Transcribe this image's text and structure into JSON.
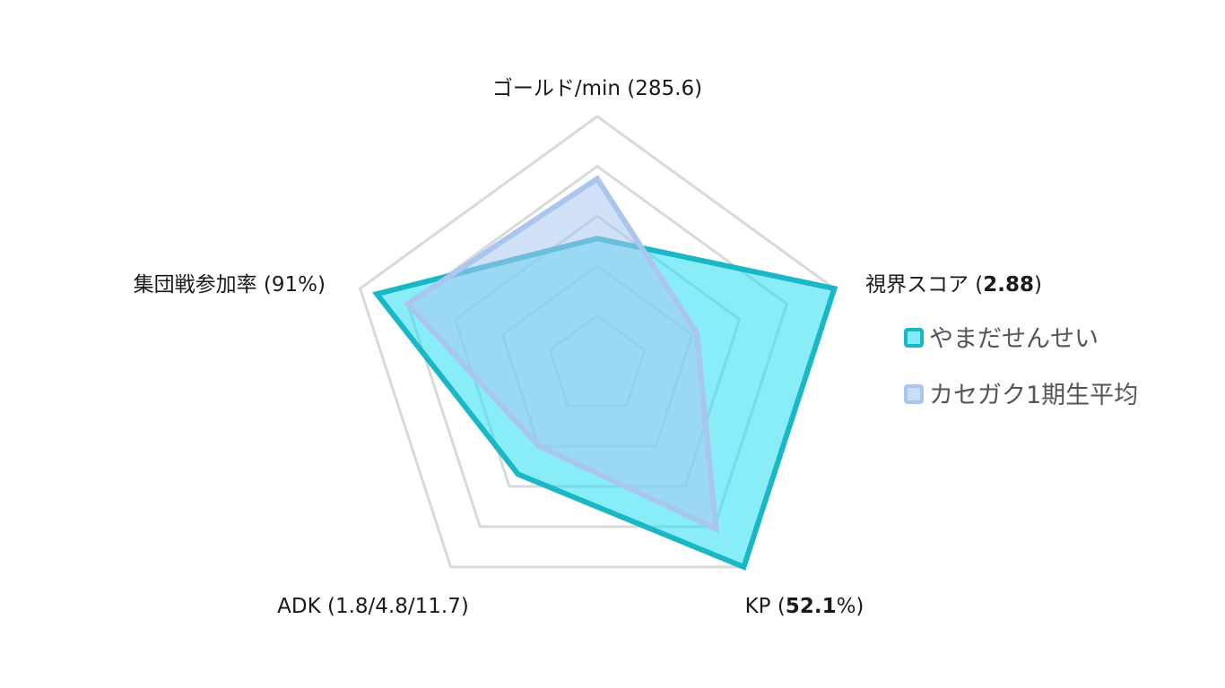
{
  "chart_data": {
    "type": "radar",
    "max": 1.0,
    "rings": 5,
    "axes": [
      {
        "id": "gold",
        "label": "ゴールド/min (285.6)",
        "prefix": "ゴールド/min (285.6)",
        "bold": "",
        "suffix": ""
      },
      {
        "id": "vision",
        "label": "視界スコア (2.88)",
        "prefix": "視界スコア (",
        "bold": "2.88",
        "suffix": ")"
      },
      {
        "id": "kp",
        "label": "KP (52.1%)",
        "prefix": "KP (",
        "bold": "52.1",
        "suffix": "%)"
      },
      {
        "id": "adk",
        "label": "ADK (1.8/4.8/11.7)",
        "prefix": "ADK (1.8/4.8/11.7)",
        "bold": "",
        "suffix": ""
      },
      {
        "id": "teamfight",
        "label": "集団戦参加率 (91%)",
        "prefix": "集団戦参加率 (91%)",
        "bold": "",
        "suffix": ""
      }
    ],
    "series": [
      {
        "name": "やまだせんせい",
        "values": [
          0.51,
          1.0,
          1.0,
          0.54,
          0.93
        ],
        "color": "#1ab8c6",
        "fill": "rgba(40, 222, 242, 0.55)"
      },
      {
        "name": "カセガク1期生平均",
        "values": [
          0.75,
          0.42,
          0.81,
          0.4,
          0.8
        ],
        "color": "#a9c6ef",
        "fill": "rgba(169, 198, 239, 0.55)"
      }
    ],
    "grid": true,
    "grid_color": "#d9d9d9",
    "legend_position": "right"
  }
}
